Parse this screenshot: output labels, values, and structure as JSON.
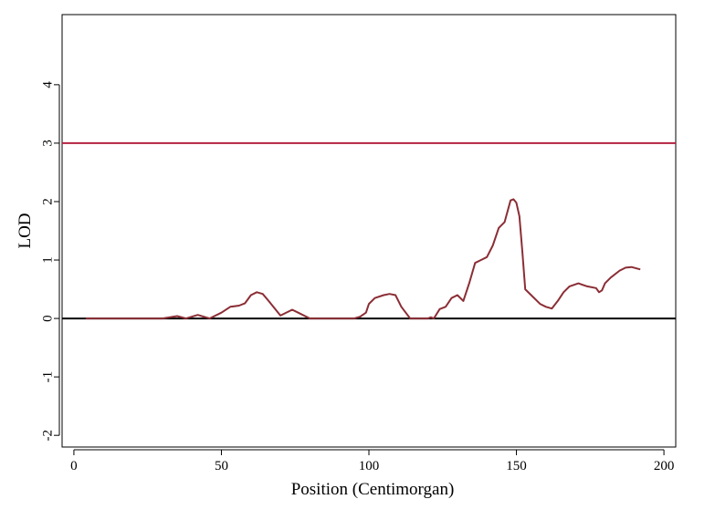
{
  "chart_data": {
    "type": "line",
    "title": "",
    "xlabel": "Position (Centimorgan)",
    "ylabel": "LOD",
    "xlim": [
      -4,
      204
    ],
    "ylim": [
      -2.2,
      5.2
    ],
    "x_ticks": [
      0,
      50,
      100,
      150,
      200
    ],
    "y_ticks": [
      -2,
      -1,
      0,
      1,
      2,
      3,
      4
    ],
    "grid": false,
    "legend": "none",
    "reference_lines": [
      {
        "name": "threshold",
        "y": 3,
        "color": "#b3203f"
      },
      {
        "name": "baseline",
        "y": 0,
        "color": "#000000"
      }
    ],
    "series": [
      {
        "color": "#8b2e35",
        "x": [
          4,
          10,
          20,
          30,
          35,
          38,
          42,
          46,
          50,
          53,
          56,
          58,
          60,
          62,
          64,
          66,
          70,
          74,
          76,
          80,
          85,
          90,
          95,
          97,
          99,
          100,
          102,
          105,
          107,
          109,
          111,
          114,
          120,
          121,
          122,
          124,
          126,
          128,
          130,
          132,
          134,
          136,
          138,
          140,
          142,
          144,
          146,
          148,
          149,
          150,
          151,
          152,
          153,
          155,
          158,
          160,
          162,
          164,
          166,
          168,
          171,
          174,
          177,
          178,
          179,
          180,
          182,
          185,
          187,
          189,
          192
        ],
        "y": [
          0,
          0,
          0,
          0,
          0.04,
          0,
          0.06,
          0,
          0.1,
          0.2,
          0.22,
          0.26,
          0.4,
          0.45,
          0.42,
          0.3,
          0.05,
          0.15,
          0.1,
          0,
          0,
          0,
          0,
          0.03,
          0.1,
          0.25,
          0.35,
          0.4,
          0.42,
          0.4,
          0.2,
          0,
          0,
          0.02,
          0,
          0.16,
          0.2,
          0.35,
          0.4,
          0.3,
          0.6,
          0.95,
          1.0,
          1.05,
          1.25,
          1.55,
          1.65,
          2.02,
          2.04,
          1.98,
          1.75,
          1.15,
          0.5,
          0.4,
          0.25,
          0.2,
          0.17,
          0.3,
          0.45,
          0.55,
          0.6,
          0.55,
          0.52,
          0.45,
          0.48,
          0.6,
          0.7,
          0.82,
          0.87,
          0.88,
          0.84
        ]
      }
    ]
  }
}
